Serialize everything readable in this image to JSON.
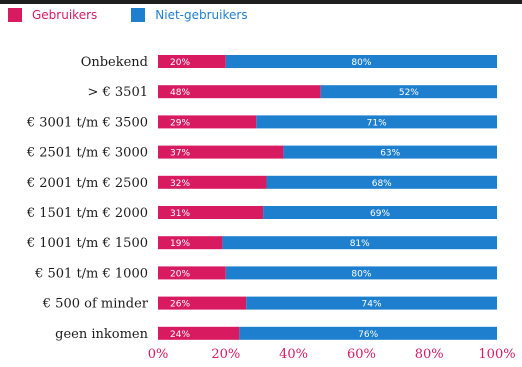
{
  "colors": {
    "users": "#d81b60",
    "nonusers": "#1f7fcf",
    "axis_text": "#d81b60",
    "category_text": "#1c1c1c",
    "value_text": "#ffffff"
  },
  "legend": {
    "users_label": "Gebruikers",
    "nonusers_label": "Niet-gebruikers"
  },
  "chart_data": {
    "type": "bar",
    "orientation": "horizontal",
    "stacked": true,
    "categories": [
      "Onbekend",
      "> € 3501",
      "€ 3001 t/m € 3500",
      "€ 2501 t/m € 3000",
      "€ 2001 t/m € 2500",
      "€ 1501 t/m € 2000",
      "€ 1001 t/m € 1500",
      "€ 501 t/m € 1000",
      "€ 500 of minder",
      "geen inkomen"
    ],
    "series": [
      {
        "name": "Gebruikers",
        "values": [
          20,
          48,
          29,
          37,
          32,
          31,
          19,
          20,
          26,
          24
        ],
        "labels": [
          "20%",
          "48%",
          "29%",
          "37%",
          "32%",
          "31%",
          "19%",
          "20%",
          "26%",
          "24%"
        ]
      },
      {
        "name": "Niet-gebruikers",
        "values": [
          80,
          52,
          71,
          63,
          68,
          69,
          81,
          80,
          74,
          76
        ],
        "labels": [
          "80%",
          "52%",
          "71%",
          "63%",
          "68%",
          "69%",
          "81%",
          "80%",
          "74%",
          "76%"
        ]
      }
    ],
    "xlim": [
      0,
      100
    ],
    "xticks": [
      0,
      20,
      40,
      60,
      80,
      100
    ],
    "xtick_labels": [
      "0%",
      "20%",
      "40%",
      "60%",
      "80%",
      "100%"
    ],
    "grid": false,
    "legend_position": "top-left"
  }
}
